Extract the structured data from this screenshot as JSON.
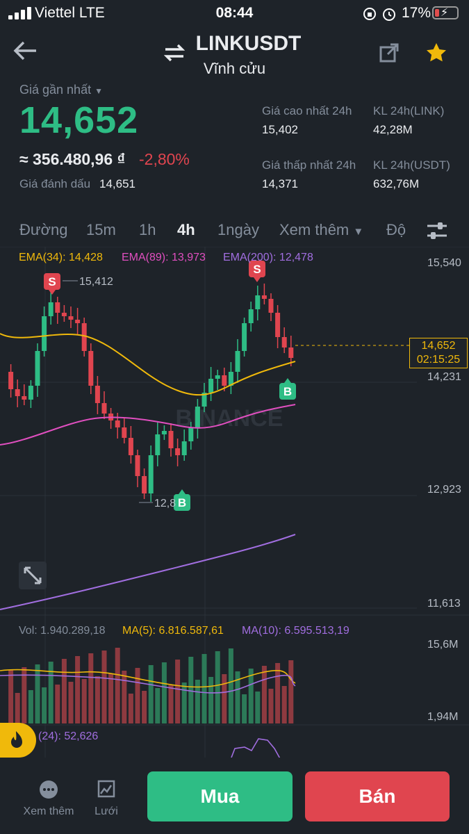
{
  "status_bar": {
    "carrier": "Viettel  LTE",
    "time": "08:44",
    "battery_pct": "17%",
    "icons": [
      "signal-icon",
      "orientation-lock-icon",
      "alarm-icon",
      "battery-charging-icon"
    ]
  },
  "header": {
    "back_icon": "arrow-left-icon",
    "swap_icon": "swap-icon",
    "symbol": "LINKUSDT",
    "contract_type": "Vĩnh cửu",
    "share_icon": "share-icon",
    "favorite_icon": "star-icon"
  },
  "price": {
    "last_price_label": "Giá gần nhất",
    "last_price": "14,652",
    "fiat_value": "≈ 356.480,96 ₫",
    "change_pct": "-2,80%",
    "mark_price_label": "Giá đánh dấu",
    "mark_price": "14,651"
  },
  "stats": {
    "high_label": "Giá cao nhất 24h",
    "high_value": "15,402",
    "low_label": "Giá thấp nhất 24h",
    "low_value": "14,371",
    "vol_link_label": "KL 24h(LINK)",
    "vol_link_value": "42,28M",
    "vol_usdt_label": "KL 24h(USDT)",
    "vol_usdt_value": "632,76M"
  },
  "timeframes": {
    "line": "Đường",
    "m15": "15m",
    "h1": "1h",
    "h4": "4h",
    "d1": "1ngày",
    "more": "Xem thêm",
    "depth": "Độ",
    "active": "4h"
  },
  "indicators": {
    "ema34": "EMA(34): 14,428",
    "ema89": "EMA(89): 13,973",
    "ema200": "EMA(200): 12,478",
    "vol": "Vol: 1.940.289,18",
    "ma5": "MA(5): 6.816.587,61",
    "ma10": "MA(10): 6.595.513,19",
    "sub": "(24): 52,626"
  },
  "chart_data": {
    "type": "candlestick",
    "watermark": "BINANCE",
    "y_axis_labels": [
      "15,540",
      "14,231",
      "12,923",
      "11,613"
    ],
    "ylim": [
      11613,
      15540
    ],
    "current_price_tag": "14,652",
    "countdown": "02:15:25",
    "high_marker": "15,412",
    "low_marker": "12,8",
    "signals": [
      "S",
      "S",
      "B",
      "B"
    ],
    "volume_axis_labels": [
      "15,6M",
      "1,94M"
    ],
    "colors": {
      "up": "#2ebd85",
      "down": "#e0454f",
      "ema34": "#f0b90b",
      "ema89": "#e14fc0",
      "ema200": "#a16ee0",
      "ma5": "#f0b90b",
      "ma10": "#a16ee0"
    }
  },
  "bottom_bar": {
    "more_label": "Xem thêm",
    "grid_label": "Lưới",
    "buy_label": "Mua",
    "sell_label": "Bán"
  }
}
